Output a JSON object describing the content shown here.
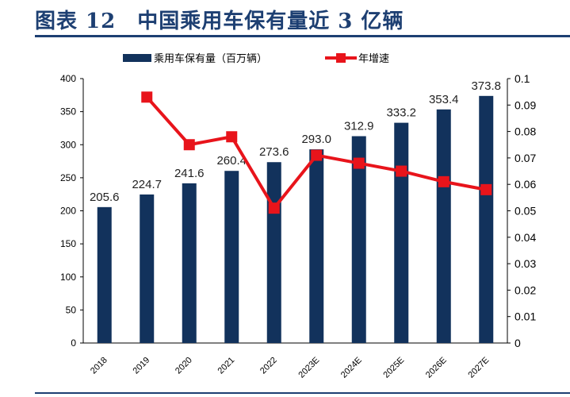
{
  "header": {
    "title": "图表 12　中国乘用车保有量近 3 亿辆"
  },
  "chart_data": {
    "type": "bar+line",
    "categories": [
      "2018",
      "2019",
      "2020",
      "2021",
      "2022",
      "2023E",
      "2024E",
      "2025E",
      "2026E",
      "2027E"
    ],
    "series": [
      {
        "name": "乘用车保有量（百万辆）",
        "type": "bar",
        "axis": "left",
        "color": "#12325c",
        "values": [
          205.6,
          224.7,
          241.6,
          260.4,
          273.6,
          293.0,
          312.9,
          333.2,
          353.4,
          373.8
        ],
        "labels": [
          "205.6",
          "224.7",
          "241.6",
          "260.4",
          "273.6",
          "293.0",
          "312.9",
          "333.2",
          "353.4",
          "373.8"
        ]
      },
      {
        "name": "年增速",
        "type": "line",
        "axis": "right",
        "color": "#e8141b",
        "values": [
          null,
          0.093,
          0.075,
          0.078,
          0.051,
          0.071,
          0.068,
          0.065,
          0.061,
          0.058
        ]
      }
    ],
    "ylim_left": [
      0,
      400
    ],
    "yticks_left": [
      "0",
      "50",
      "100",
      "150",
      "200",
      "250",
      "300",
      "350",
      "400"
    ],
    "ylim_right": [
      0,
      0.1
    ],
    "yticks_right": [
      "0",
      "0.01",
      "0.02",
      "0.03",
      "0.04",
      "0.05",
      "0.06",
      "0.07",
      "0.08",
      "0.09",
      "0.1"
    ],
    "legend": "top",
    "grid": false
  }
}
